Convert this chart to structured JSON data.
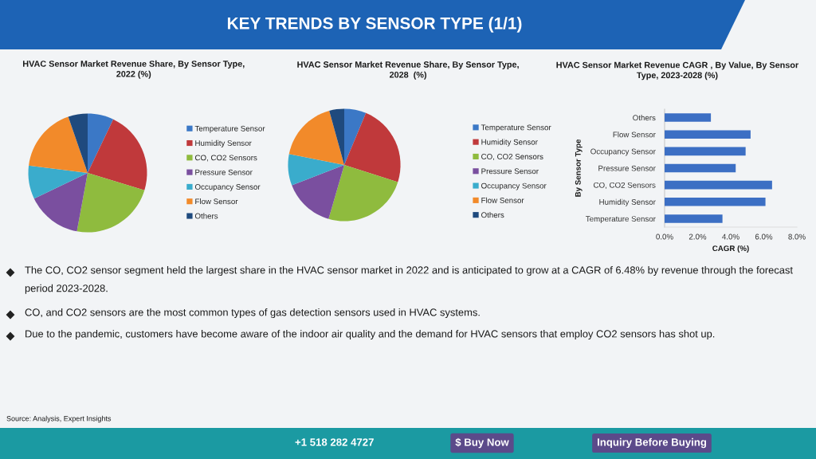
{
  "chart_data": [
    {
      "type": "other",
      "title": "KEY TRENDS BY SENSOR TYPE (1/1)"
    },
    {
      "type": "pie",
      "title": "HVAC Sensor Market Revenue Share, By Sensor Type,\n2022 (%)",
      "categories": [
        "Temperature Sensor",
        "Humidity Sensor",
        "CO, CO2 Sensors",
        "Pressure Sensor",
        "Occupancy Sensor",
        "Flow Sensor",
        "Others"
      ],
      "values": [
        7.1,
        22.6,
        23.2,
        15.0,
        9.1,
        17.7,
        5.3
      ],
      "colors": [
        "#3b78c6",
        "#c0393b",
        "#8fbb3e",
        "#7a4f9f",
        "#3aaccc",
        "#f28a2a",
        "#1f4a7e"
      ],
      "legend": "right"
    },
    {
      "type": "pie",
      "title": "HVAC Sensor Market Revenue Share, By Sensor Type,\n2028  (%)",
      "categories": [
        "Temperature Sensor",
        "Humidity Sensor",
        "CO, CO2 Sensors",
        "Pressure Sensor",
        "Occupancy Sensor",
        "Flow Sensor",
        "Others"
      ],
      "values": [
        6.3,
        23.6,
        24.6,
        14.6,
        9.0,
        17.6,
        4.3
      ],
      "colors": [
        "#3b78c6",
        "#c0393b",
        "#8fbb3e",
        "#7a4f9f",
        "#3aaccc",
        "#f28a2a",
        "#1f4a7e"
      ],
      "legend": "right"
    },
    {
      "type": "bar",
      "orientation": "horizontal",
      "title": "HVAC Sensor Market Revenue CAGR , By Value, By Sensor\nType, 2023-2028 (%)",
      "categories": [
        "Others",
        "Flow Sensor",
        "Occupancy Sensor",
        "Pressure Sensor",
        "CO, CO2 Sensors",
        "Humidity Sensor",
        "Temperature Sensor"
      ],
      "values": [
        2.8,
        5.2,
        4.9,
        4.3,
        6.5,
        6.1,
        3.5
      ],
      "color": "#3c6fc4",
      "xlim": [
        0,
        8
      ],
      "xticks": [
        {
          "value": 0,
          "label": "0.0%"
        },
        {
          "value": 2,
          "label": "2.0%"
        },
        {
          "value": 4,
          "label": "4.0%"
        },
        {
          "value": 6,
          "label": "6.0%"
        },
        {
          "value": 8,
          "label": "8.0%"
        }
      ],
      "xlabel": "CAGR (%)",
      "ylabel": "By Sensor Type"
    },
    {
      "type": "other",
      "annotations": [
        "The CO, CO2 sensor segment held the largest share in the HVAC sensor market in 2022 and is anticipated to grow at a CAGR of 6.48% by revenue through the forecast period 2023-2028.",
        "CO, and CO2 sensors are the most common types of gas detection sensors used in HVAC systems.",
        "Due to the pandemic, customers have become aware of the indoor air quality and the demand for HVAC sensors that employ CO2 sensors has shot up.",
        "Source: Analysis, Expert Insights"
      ]
    },
    {
      "type": "other",
      "annotations": [
        "+1 518 282 4727",
        "$ Buy Now",
        "Inquiry Before Buying"
      ]
    }
  ]
}
